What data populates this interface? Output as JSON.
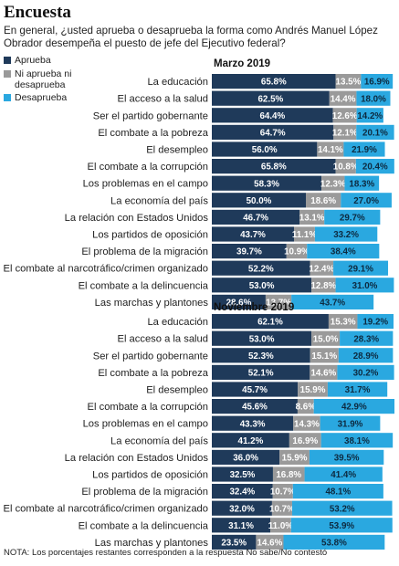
{
  "header": {
    "title": "Encuesta",
    "subtitle": "En general, ¿usted aprueba o desaprueba la forma como Andrés Manuel López Obrador desempeña el puesto de jefe del Ejecutivo federal?"
  },
  "legend": [
    {
      "label": "Aprueba",
      "color": "#1f3a5a"
    },
    {
      "label": "Ni aprueba ni desaprueba",
      "color": "#9a9a9a"
    },
    {
      "label": "Desaprueba",
      "color": "#2aa8e0"
    }
  ],
  "note": "NOTA: Los porcentajes restantes corresponden a la respuesta No sabe/No contestó",
  "chart_data": [
    {
      "type": "bar",
      "stacked": true,
      "orientation": "horizontal",
      "title": "Marzo 2019",
      "categories": [
        "La educación",
        "El acceso a la salud",
        "Ser el partido gobernante",
        "El combate a la pobreza",
        "El desempleo",
        "El combate a la corrupción",
        "Los problemas en el campo",
        "La economía del país",
        "La relación con Estados Unidos",
        "Los partidos de oposición",
        "El problema de la migración",
        "El combate al narcotráfico/crimen organizado",
        "El combate a la delincuencia",
        "Las marchas y plantones"
      ],
      "series": [
        {
          "name": "Aprueba",
          "values": [
            65.8,
            62.5,
            64.4,
            64.7,
            56.0,
            65.8,
            58.3,
            50.0,
            46.7,
            43.7,
            39.7,
            52.2,
            53.0,
            28.6
          ]
        },
        {
          "name": "Ni aprueba ni desaprueba",
          "values": [
            13.5,
            14.4,
            12.6,
            12.1,
            14.1,
            10.8,
            12.3,
            18.6,
            13.1,
            11.1,
            10.9,
            12.4,
            12.8,
            13.7
          ]
        },
        {
          "name": "Desaprueba",
          "values": [
            16.9,
            18.0,
            14.2,
            20.1,
            21.9,
            20.4,
            18.3,
            27.0,
            29.7,
            33.2,
            38.4,
            29.1,
            31.0,
            43.7
          ]
        }
      ],
      "value_labels": [
        [
          "65.8%",
          "13.5%",
          "16.9%"
        ],
        [
          "62.5%",
          "14.4%",
          "18.0%"
        ],
        [
          "64.4%",
          "12.6%",
          "14.2%"
        ],
        [
          "64.7%",
          "12.1%",
          "20.1%"
        ],
        [
          "56.0%",
          "14.1%",
          "21.9%"
        ],
        [
          "65.8%",
          "10.8%",
          "20.4%"
        ],
        [
          "58.3%",
          "12.3%",
          "18.3%"
        ],
        [
          "50.0%",
          "18.6%",
          "27.0%"
        ],
        [
          "46.7%",
          "13.1%",
          "29.7%"
        ],
        [
          "43.7%",
          "11.1%",
          "33.2%"
        ],
        [
          "39.7%",
          "10.9%",
          "38.4%"
        ],
        [
          "52.2%",
          "12.4%",
          "29.1%"
        ],
        [
          "53.0%",
          "12.8%",
          "31.0%"
        ],
        [
          "28.6%",
          "13.7%",
          "43.7%"
        ]
      ],
      "xlim": [
        0,
        100
      ]
    },
    {
      "type": "bar",
      "stacked": true,
      "orientation": "horizontal",
      "title": "Noviembre 2019",
      "categories": [
        "La educación",
        "El acceso a la salud",
        "Ser el partido gobernante",
        "El combate a la pobreza",
        "El desempleo",
        "El combate a la corrupción",
        "Los problemas en el campo",
        "La economía del país",
        "La relación con Estados Unidos",
        "Los partidos de oposición",
        "El problema de la migración",
        "El combate al narcotráfico/crimen organizado",
        "El combate a la delincuencia",
        "Las marchas y plantones"
      ],
      "series": [
        {
          "name": "Aprueba",
          "values": [
            62.1,
            53.0,
            52.3,
            52.1,
            45.7,
            45.6,
            43.3,
            41.2,
            36.0,
            32.5,
            32.4,
            32.0,
            31.1,
            23.5
          ]
        },
        {
          "name": "Ni aprueba ni desaprueba",
          "values": [
            15.3,
            15.0,
            15.1,
            14.6,
            15.9,
            8.6,
            14.3,
            16.9,
            15.9,
            16.8,
            10.7,
            10.7,
            11.0,
            14.6
          ]
        },
        {
          "name": "Desaprueba",
          "values": [
            19.2,
            28.3,
            28.9,
            30.2,
            31.7,
            42.9,
            31.9,
            38.1,
            39.5,
            41.4,
            48.1,
            53.2,
            53.9,
            53.8
          ]
        }
      ],
      "value_labels": [
        [
          "62.1%",
          "15.3%",
          "19.2%"
        ],
        [
          "53.0%",
          "15.0%",
          "28.3%"
        ],
        [
          "52.3%",
          "15.1%",
          "28.9%"
        ],
        [
          "52.1%",
          "14.6%",
          "30.2%"
        ],
        [
          "45.7%",
          "15.9%",
          "31.7%"
        ],
        [
          "45.6%",
          "8.6%",
          "42.9%"
        ],
        [
          "43.3%",
          "14.3%",
          "31.9%"
        ],
        [
          "41.2%",
          "16.9%",
          "38.1%"
        ],
        [
          "36.0%",
          "15.9%",
          "39.5%"
        ],
        [
          "32.5%",
          "16.8%",
          "41.4%"
        ],
        [
          "32.4%",
          "10.7%",
          "48.1%"
        ],
        [
          "32.0%",
          "10.7%",
          "53.2%"
        ],
        [
          "31.1%",
          "11.0%",
          "53.9%"
        ],
        [
          "23.5%",
          "14.6%",
          "53.8%"
        ]
      ],
      "xlim": [
        0,
        100
      ]
    }
  ]
}
